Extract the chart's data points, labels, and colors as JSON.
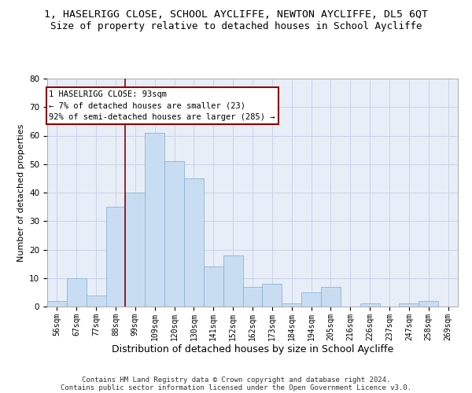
{
  "title": "1, HASELRIGG CLOSE, SCHOOL AYCLIFFE, NEWTON AYCLIFFE, DL5 6QT",
  "subtitle": "Size of property relative to detached houses in School Aycliffe",
  "xlabel": "Distribution of detached houses by size in School Aycliffe",
  "ylabel": "Number of detached properties",
  "bin_labels": [
    "56sqm",
    "67sqm",
    "77sqm",
    "88sqm",
    "99sqm",
    "109sqm",
    "120sqm",
    "130sqm",
    "141sqm",
    "152sqm",
    "162sqm",
    "173sqm",
    "184sqm",
    "194sqm",
    "205sqm",
    "216sqm",
    "226sqm",
    "237sqm",
    "247sqm",
    "258sqm",
    "269sqm"
  ],
  "bar_heights": [
    2,
    10,
    4,
    35,
    40,
    61,
    51,
    45,
    14,
    18,
    7,
    8,
    1,
    5,
    7,
    0,
    1,
    0,
    1,
    2,
    0
  ],
  "bar_color": "#c9ddf2",
  "bar_edge_color": "#8ab4d8",
  "vline_x": 3.5,
  "vline_color": "#8b0000",
  "annotation_line1": "1 HASELRIGG CLOSE: 93sqm",
  "annotation_line2": "← 7% of detached houses are smaller (23)",
  "annotation_line3": "92% of semi-detached houses are larger (285) →",
  "annotation_box_edge_color": "#8b0000",
  "ylim": [
    0,
    80
  ],
  "yticks": [
    0,
    10,
    20,
    30,
    40,
    50,
    60,
    70,
    80
  ],
  "grid_color": "#c8d4e8",
  "bg_color": "#e8eef8",
  "footer_line1": "Contains HM Land Registry data © Crown copyright and database right 2024.",
  "footer_line2": "Contains public sector information licensed under the Open Government Licence v3.0.",
  "title_fontsize": 9.5,
  "subtitle_fontsize": 9,
  "xlabel_fontsize": 9,
  "ylabel_fontsize": 8,
  "tick_fontsize": 7,
  "annotation_fontsize": 7.5,
  "footer_fontsize": 6.5
}
